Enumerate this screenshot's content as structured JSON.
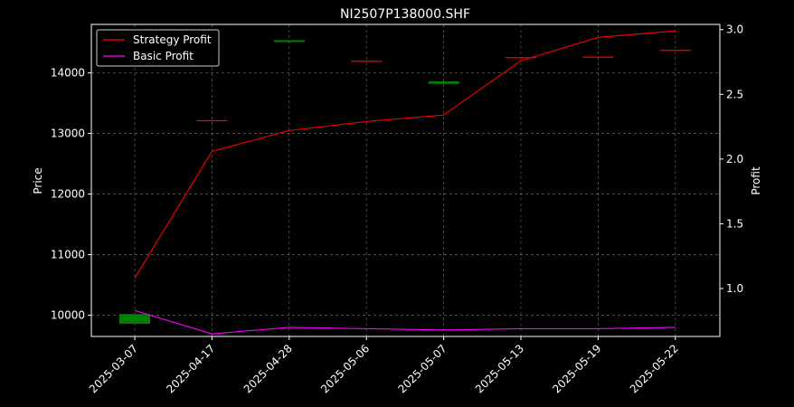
{
  "chart_data": {
    "type": "line",
    "title": "NI2507P138000.SHF",
    "xlabel": "",
    "ylabel_left": "Price",
    "ylabel_right": "Profit",
    "categories": [
      "2025-03-07",
      "2025-04-17",
      "2025-04-28",
      "2025-05-06",
      "2025-05-07",
      "2025-05-13",
      "2025-05-19",
      "2025-05-22"
    ],
    "left_axis": {
      "ylim": [
        9650,
        14800
      ],
      "ticks": [
        10000,
        11000,
        12000,
        13000,
        14000
      ]
    },
    "right_axis": {
      "ylim": [
        0.63,
        3.04
      ],
      "ticks": [
        1.0,
        1.5,
        2.0,
        2.5,
        3.0
      ],
      "tick_labels": [
        "1.0",
        "1.5",
        "2.0",
        "2.5",
        "3.0"
      ]
    },
    "grid": true,
    "legend_position": "top-left",
    "series": [
      {
        "name": "Strategy Profit",
        "axis": "right",
        "color": "#ff0000",
        "values": [
          1.08,
          2.06,
          2.22,
          2.29,
          2.34,
          2.76,
          2.94,
          2.99
        ]
      },
      {
        "name": "Basic Profit",
        "axis": "right",
        "color": "#ff00ff",
        "values": [
          0.83,
          0.65,
          0.7,
          0.69,
          0.68,
          0.69,
          0.69,
          0.7
        ]
      }
    ],
    "candles": [
      {
        "open": 9860,
        "close": 10020,
        "color": "#008000"
      },
      {
        "open": 13220,
        "close": 13220,
        "color": "#ff0000"
      },
      {
        "open": 14510,
        "close": 14540,
        "color": "#008000"
      },
      {
        "open": 14200,
        "close": 14200,
        "color": "#ff0000"
      },
      {
        "open": 13820,
        "close": 13860,
        "color": "#008000"
      },
      {
        "open": 14260,
        "close": 14260,
        "color": "#ff0000"
      },
      {
        "open": 14270,
        "close": 14270,
        "color": "#ff0000"
      },
      {
        "open": 14380,
        "close": 14380,
        "color": "#ff0000"
      }
    ]
  }
}
